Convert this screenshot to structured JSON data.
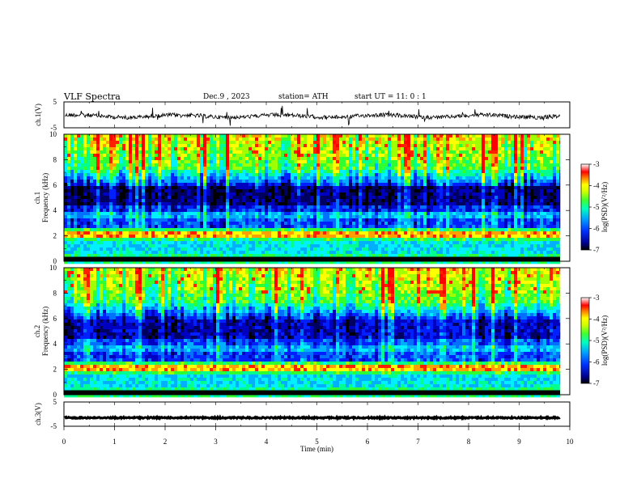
{
  "header": {
    "title": "VLF  Spectra",
    "date": "Dec.9  , 2023",
    "station": "station= ATH",
    "start": "start  UT  =    11: 0   : 1"
  },
  "colors": {
    "spectrogram_palette": [
      "#000080",
      "#0000ff",
      "#0060ff",
      "#00c0ff",
      "#00ffb0",
      "#40ff40",
      "#c0ff00",
      "#ffff00",
      "#ff8000",
      "#ff0000",
      "#ffffff"
    ],
    "trace": "#000000"
  },
  "chart_data": [
    {
      "type": "line",
      "name": "ch1-waveform",
      "ylabel": "ch.1(V)",
      "ylim": [
        -5,
        5
      ],
      "yticks": [
        "5",
        "-5"
      ],
      "xlim": [
        0,
        10
      ],
      "description_values": "noisy signal around -0.5 V with spikes reaching about ±3 V",
      "baseline": -0.5
    },
    {
      "type": "heatmap",
      "name": "ch1-spectrogram",
      "ylabel": "ch.1\nFrequency  (kHz)",
      "ylim": [
        0,
        10
      ],
      "yticks": [
        "0",
        "2",
        "4",
        "6",
        "8",
        "10"
      ],
      "xlim": [
        0,
        9.8
      ],
      "colorbar": {
        "label": "log(PSD)(V²/Hz)",
        "range": [
          -7,
          -3
        ],
        "ticks": [
          "-3",
          "-4",
          "-5",
          "-6",
          "-7"
        ]
      }
    },
    {
      "type": "heatmap",
      "name": "ch2-spectrogram",
      "ylabel": "ch.2\nFrequency  (kHz)",
      "ylim": [
        0,
        10
      ],
      "yticks": [
        "0",
        "2",
        "4",
        "6",
        "8",
        "10"
      ],
      "xlim": [
        0,
        9.8
      ],
      "colorbar": {
        "label": "log(PSD)(V²/Hz)",
        "range": [
          -7,
          -3
        ],
        "ticks": [
          "-3",
          "-4",
          "-5",
          "-6",
          "-7"
        ]
      }
    },
    {
      "type": "line",
      "name": "ch3-waveform",
      "ylabel": "ch.3(V)",
      "ylim": [
        -5,
        5
      ],
      "yticks": [
        "5",
        "-5"
      ],
      "xlim": [
        0,
        10
      ],
      "baseline": -1.5
    }
  ],
  "xaxis": {
    "label": "Time  (min)",
    "range": [
      0,
      10
    ],
    "ticks": [
      "0",
      "1",
      "2",
      "3",
      "4",
      "5",
      "6",
      "7",
      "8",
      "9",
      "10"
    ]
  }
}
